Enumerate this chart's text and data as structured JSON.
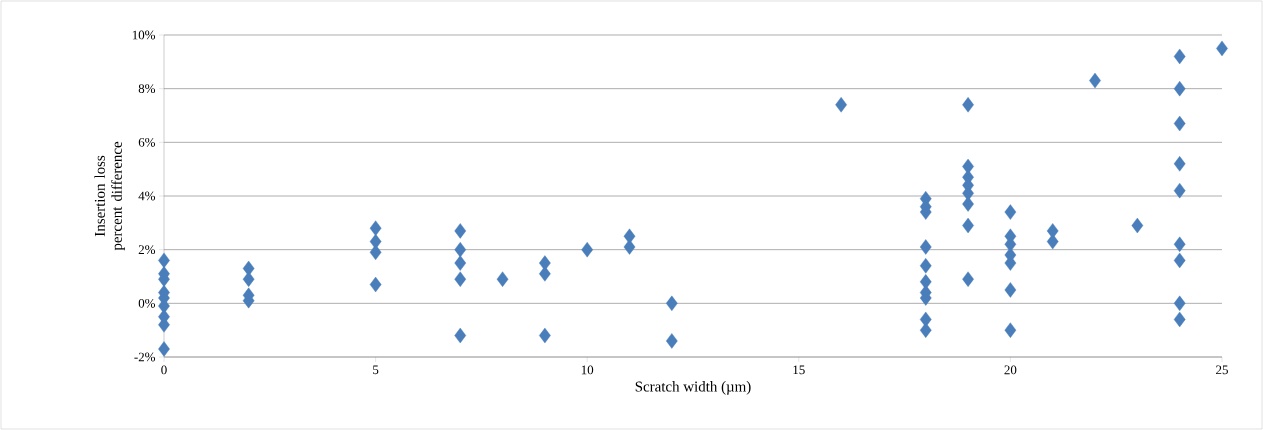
{
  "chart_data": {
    "type": "scatter",
    "xlabel": "Scratch width (µm)",
    "ylabel": "Insertion loss percent difference",
    "x": [
      0,
      0,
      0,
      0,
      0,
      0,
      0,
      0,
      0,
      2,
      2,
      2,
      2,
      5,
      5,
      5,
      5,
      7,
      7,
      7,
      7,
      7,
      8,
      9,
      9,
      9,
      10,
      11,
      11,
      12,
      12,
      16,
      18,
      18,
      18,
      18,
      18,
      18,
      18,
      18,
      18,
      18,
      19,
      19,
      19,
      19,
      19,
      19,
      19,
      19,
      20,
      20,
      20,
      20,
      20,
      20,
      20,
      21,
      21,
      22,
      23,
      24,
      24,
      24,
      24,
      24,
      24,
      24,
      24,
      24,
      25
    ],
    "values": [
      1.6,
      1.1,
      0.9,
      0.4,
      0.2,
      -0.1,
      -0.5,
      -0.8,
      -1.7,
      1.3,
      0.9,
      0.3,
      0.1,
      2.8,
      2.3,
      1.9,
      0.7,
      2.7,
      2.0,
      1.5,
      0.9,
      -1.2,
      0.9,
      1.5,
      1.1,
      -1.2,
      2.0,
      2.5,
      2.1,
      0.0,
      -1.4,
      7.4,
      3.9,
      3.6,
      3.4,
      2.1,
      1.4,
      0.8,
      0.4,
      0.2,
      -0.6,
      -1.0,
      7.4,
      5.1,
      4.7,
      4.4,
      4.1,
      3.7,
      2.9,
      0.9,
      3.4,
      2.5,
      2.2,
      1.8,
      1.5,
      0.5,
      -1.0,
      2.7,
      2.3,
      8.3,
      2.9,
      9.2,
      8.0,
      6.7,
      5.2,
      4.2,
      2.2,
      1.6,
      0.0,
      -0.6,
      9.5
    ],
    "color": "#4a7ebb",
    "marker": "diamond",
    "grid": "y",
    "xlim": [
      0,
      25
    ],
    "ylim": [
      -2,
      10
    ],
    "xticks": [
      0,
      5,
      10,
      15,
      20,
      25
    ],
    "yticks": [
      {
        "value": -2,
        "label": "-2%"
      },
      {
        "value": 0,
        "label": "0%"
      },
      {
        "value": 2,
        "label": "2%"
      },
      {
        "value": 4,
        "label": "4%"
      },
      {
        "value": 6,
        "label": "6%"
      },
      {
        "value": 8,
        "label": "8%"
      },
      {
        "value": 10,
        "label": "10%"
      }
    ]
  }
}
